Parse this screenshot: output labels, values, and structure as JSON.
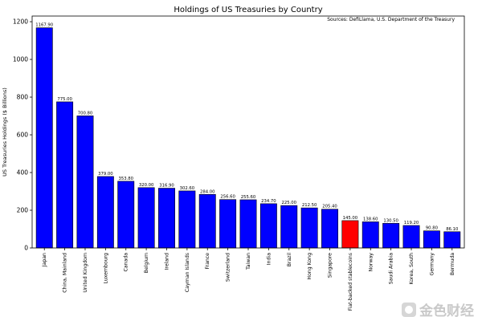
{
  "chart_data": {
    "type": "bar",
    "title": "Holdings of US Treasuries by Country",
    "source_note": "Sources: DefiLlama, U.S. Department of the Treasury",
    "xlabel": "",
    "ylabel": "US Treasuries Holdings ($ Billions)",
    "ylim": [
      0,
      1230
    ],
    "yticks": [
      0,
      200,
      400,
      600,
      800,
      1000,
      1200
    ],
    "categories": [
      "Japan",
      "China, Mainland",
      "United Kingdom",
      "Luxembourg",
      "Canada",
      "Belgium",
      "Ireland",
      "Cayman Islands",
      "France",
      "Switzerland",
      "Taiwan",
      "India",
      "Brazil",
      "Hong Kong",
      "Singapore",
      "Fiat-backed stablecoins",
      "Norway",
      "Saudi Arabia",
      "Korea, South",
      "Germany",
      "Bermuda"
    ],
    "values": [
      1167.9,
      775.0,
      700.8,
      379.0,
      353.8,
      320.0,
      316.9,
      302.6,
      284.0,
      256.6,
      255.6,
      234.7,
      225.0,
      212.5,
      205.4,
      145.0,
      138.6,
      130.5,
      119.2,
      90.8,
      86.1
    ],
    "value_labels": [
      "1167.90",
      "775.00",
      "700.80",
      "379.00",
      "353.80",
      "320.00",
      "316.90",
      "302.60",
      "284.00",
      "256.60",
      "255.60",
      "234.70",
      "225.00",
      "212.50",
      "205.40",
      "145.00",
      "138.60",
      "130.50",
      "119.20",
      "90.80",
      "86.10"
    ],
    "bar_colors": [
      "#0000ff",
      "#0000ff",
      "#0000ff",
      "#0000ff",
      "#0000ff",
      "#0000ff",
      "#0000ff",
      "#0000ff",
      "#0000ff",
      "#0000ff",
      "#0000ff",
      "#0000ff",
      "#0000ff",
      "#0000ff",
      "#0000ff",
      "#ff0000",
      "#0000ff",
      "#0000ff",
      "#0000ff",
      "#0000ff",
      "#0000ff"
    ],
    "grid": false,
    "legend": "none"
  },
  "watermark": {
    "text": "金色财经",
    "icon": "coin-logo-icon"
  }
}
